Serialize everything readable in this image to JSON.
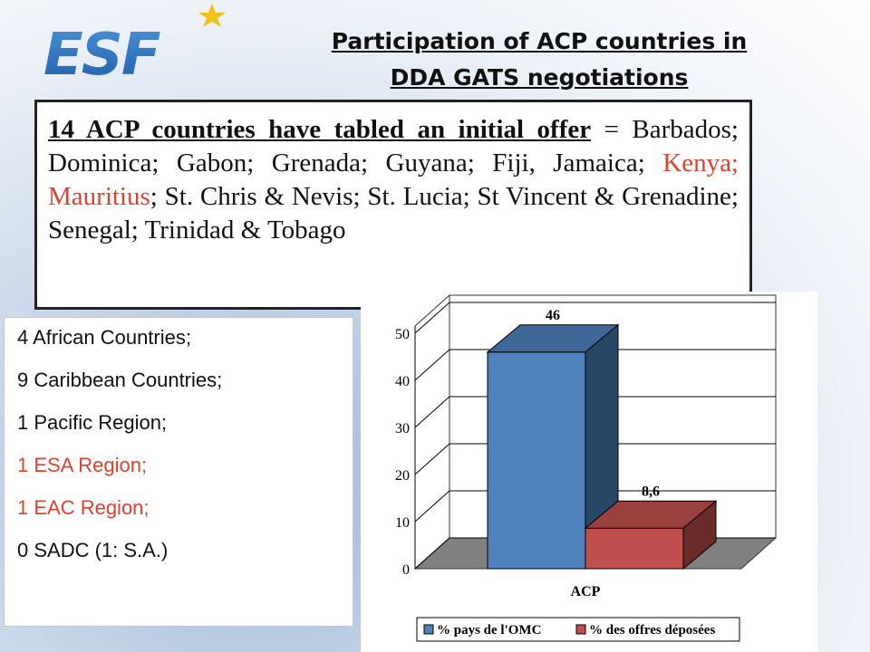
{
  "logo": {
    "text": "ESF",
    "colors": {
      "blue": "#2f74c0",
      "star": "#f2c21a"
    }
  },
  "title": {
    "line1": "Participation of ACP countries in",
    "line2": "DDA GATS negotiations"
  },
  "offer": {
    "lead": "14 ACP countries have tabled an initial offer",
    "equals": " = ",
    "countries_a": "Barbados; Dominica; Gabon; Grenada; Guyana; Fiji, Jamaica; ",
    "countries_red": "Kenya; Mauritius",
    "countries_b": "; St. Chris & Nevis; St. Lucia; St Vincent & Grenadine; Senegal; Trinidad & Tobago"
  },
  "regions": [
    {
      "text": "4 African Countries;",
      "highlight": false
    },
    {
      "text": "9 Caribbean Countries;",
      "highlight": false
    },
    {
      "text": "1 Pacific Region;",
      "highlight": false
    },
    {
      "text": "1 ESA Region;",
      "highlight": true
    },
    {
      "text": "1 EAC Region;",
      "highlight": true
    },
    {
      "text": "0 SADC (1: S.A.)",
      "highlight": false
    }
  ],
  "chart_data": {
    "type": "bar",
    "categories": [
      "ACP"
    ],
    "series": [
      {
        "name": "% pays de l'OMC",
        "values": [
          46
        ],
        "label": "46",
        "color": "#4f81bd"
      },
      {
        "name": "% des offres déposées",
        "values": [
          8.6
        ],
        "label": "8,6",
        "color": "#c0504d"
      }
    ],
    "yticks": [
      0,
      10,
      20,
      30,
      40,
      50
    ],
    "ylim": [
      0,
      50
    ],
    "legend_position": "bottom",
    "grid": true,
    "three_d": true
  }
}
